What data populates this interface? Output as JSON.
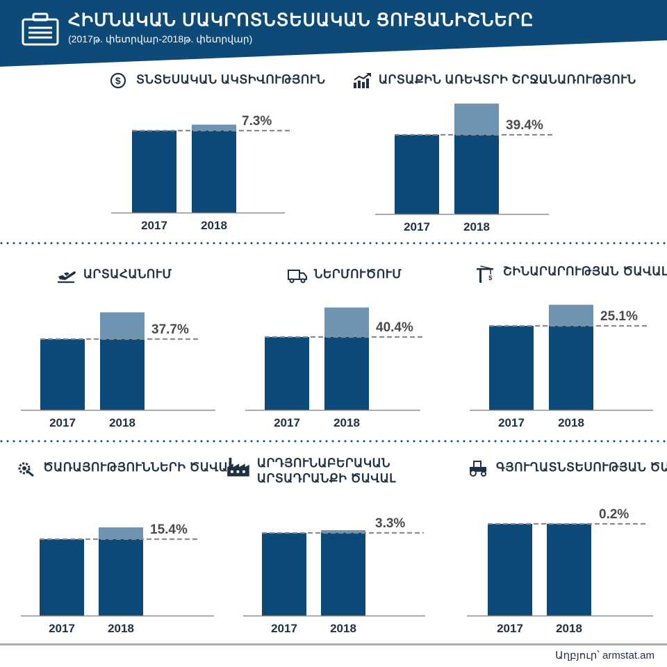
{
  "header": {
    "title": "ՀԻՄՆԱԿԱՆ ՄԱԿՐՈՏՆՏԵՍԱԿԱՆ ՑՈՒՑԱՆԻՇՆԵՐԸ",
    "subtitle": "(2017թ. փետրվար-2018թ. փետրվար)",
    "icon": "briefcase-icon",
    "color": "#0d4a78"
  },
  "colors": {
    "base": "#0b4a78",
    "growth": "#6e94b1",
    "dashed": "#8c8c8c",
    "axis": "#8c8c8c"
  },
  "source": "Աղբյուր՝ armstat.am",
  "chart_data": [
    {
      "type": "bar",
      "title": "ՏՆՏԵՍԱԿԱՆ ԱԿՏԻՎՈՒԹՅՈՒՆ",
      "icon": "dollar-cycle-icon",
      "categories": [
        "2017",
        "2018"
      ],
      "values": [
        100,
        107.3
      ],
      "growth_label": "7.3%"
    },
    {
      "type": "bar",
      "title": "ԱՐՏԱՔԻՆ ԱՌԵՎՏՐԻ ՇՐՋԱՆԱՌՈՒԹՅՈՒՆ",
      "icon": "rising-chart-icon",
      "categories": [
        "2017",
        "2018"
      ],
      "values": [
        100,
        139.4
      ],
      "growth_label": "39.4%"
    },
    {
      "type": "bar",
      "title": "ԱՐՏԱՀԱՆՈՒՄ",
      "icon": "plane-takeoff-icon",
      "categories": [
        "2017",
        "2018"
      ],
      "values": [
        100,
        137.7
      ],
      "growth_label": "37.7%"
    },
    {
      "type": "bar",
      "title": "ՆԵՐՄՈՒԾՈՒՄ",
      "icon": "truck-icon",
      "categories": [
        "2017",
        "2018"
      ],
      "values": [
        100,
        140.4
      ],
      "growth_label": "40.4%"
    },
    {
      "type": "bar",
      "title": "ՇԻՆԱՐԱՐՈՒԹՅԱՆ ԾԱՎԱԼ",
      "icon": "crane-icon",
      "categories": [
        "2017",
        "2018"
      ],
      "values": [
        100,
        125.1
      ],
      "growth_label": "25.1%"
    },
    {
      "type": "bar",
      "title": "ԾԱՌԱՅՈՒԹՅՈՒՆՆԵՐԻ ԾԱՎԱԼ",
      "icon": "gear-wrench-icon",
      "categories": [
        "2017",
        "2018"
      ],
      "values": [
        100,
        115.4
      ],
      "growth_label": "15.4%"
    },
    {
      "type": "bar",
      "title": "ԱՐԴՅՈՒՆԱԲԵՐԱԿԱՆ ԱՐՏԱԴՐԱՆՔԻ ԾԱՎԱԼ",
      "icon": "factory-icon",
      "categories": [
        "2017",
        "2018"
      ],
      "values": [
        100,
        103.3
      ],
      "growth_label": "3.3%"
    },
    {
      "type": "bar",
      "title": "ԳՅՈՒՂԱՏՆՏԵՍՈՒԹՅԱՆ ԾԱՎԱԼ",
      "icon": "tractor-icon",
      "categories": [
        "2017",
        "2018"
      ],
      "values": [
        100,
        100.2
      ],
      "growth_label": "0.2%"
    }
  ]
}
